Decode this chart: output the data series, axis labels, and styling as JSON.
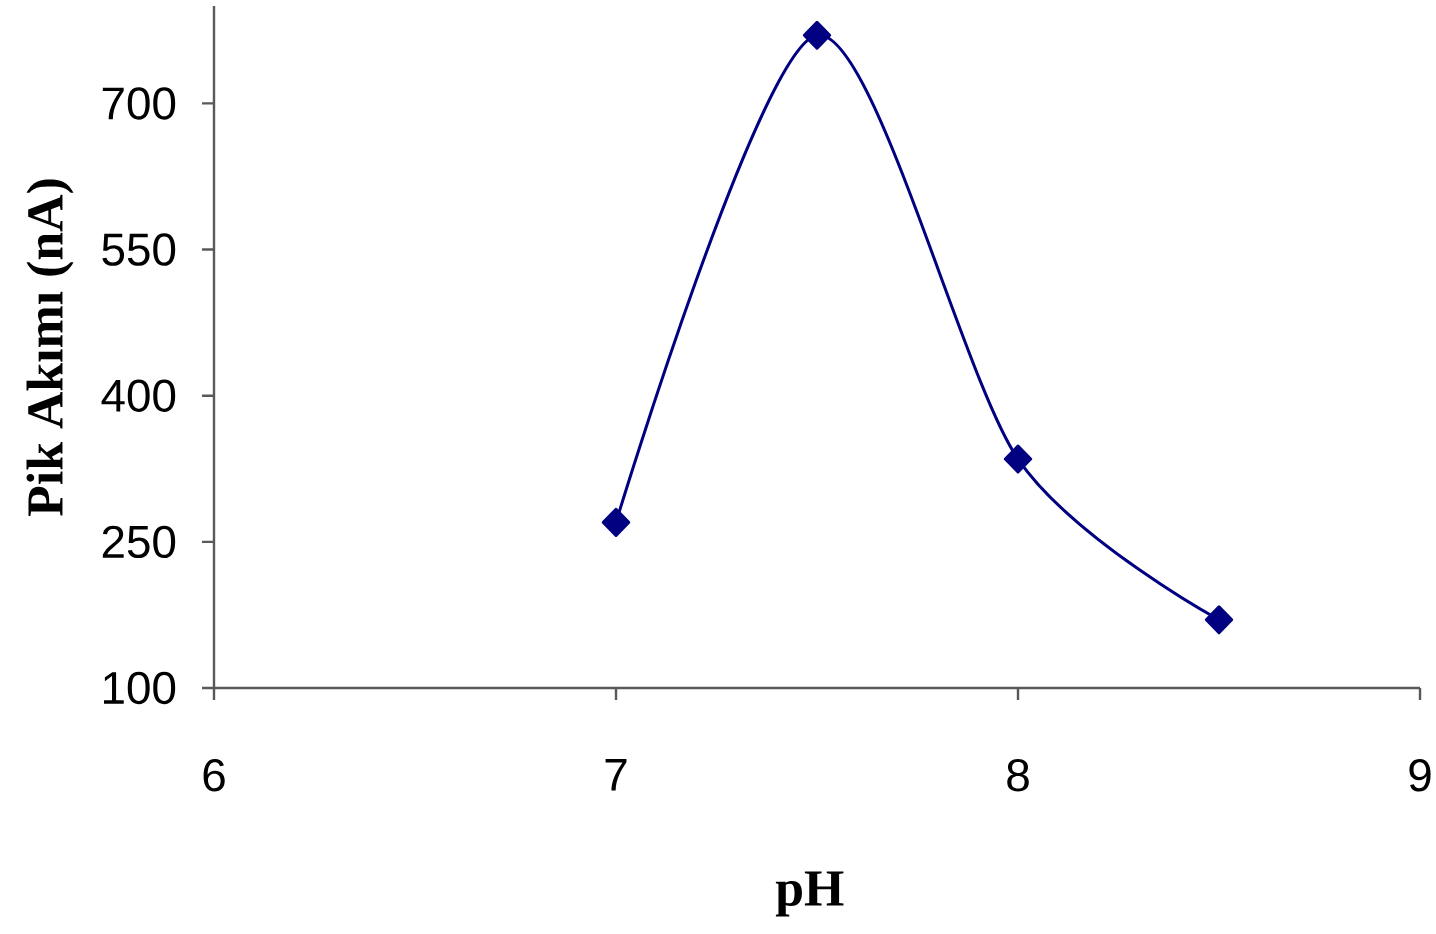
{
  "chart_data": {
    "type": "line",
    "xlabel": "pH",
    "ylabel": "Pik Akımı (nA)",
    "x": [
      7,
      7.5,
      8,
      8.5
    ],
    "series": [
      {
        "color": "#000080",
        "values": [
          270,
          770,
          335,
          170
        ]
      }
    ],
    "xlim": [
      6,
      9
    ],
    "ylim": [
      100,
      800
    ],
    "xticks": [
      6,
      7,
      8,
      9
    ],
    "yticks": [
      100,
      250,
      400,
      550,
      700
    ],
    "marker": "diamond",
    "line_style": "solid"
  }
}
